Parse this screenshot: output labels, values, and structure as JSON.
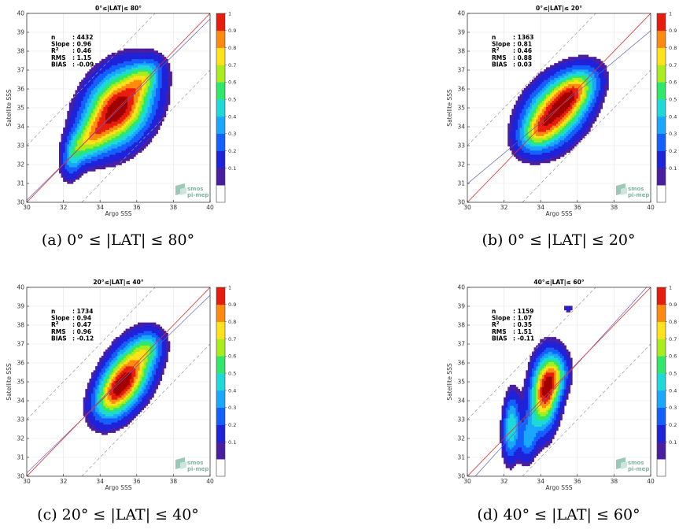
{
  "chart_data": [
    {
      "type": "heatmap",
      "title": "0°≤|LAT|≤ 80°",
      "caption": "(a) 0° ≤ |LAT| ≤ 80°",
      "xlabel": "Argo SSS",
      "ylabel": "Satellite SSS",
      "xlim": [
        30,
        40
      ],
      "ylim": [
        30,
        40
      ],
      "xticks": [
        30,
        32,
        34,
        36,
        38,
        40
      ],
      "yticks": [
        30,
        31,
        32,
        33,
        34,
        35,
        36,
        37,
        38,
        39,
        40
      ],
      "stats": [
        {
          "label": "n",
          "value": ": 4432"
        },
        {
          "label": "Slope",
          "value": ": 0.96"
        },
        {
          "label": "R2",
          "value": ": 0.46"
        },
        {
          "label": "RMS",
          "value": ": 1.15"
        },
        {
          "label": "BIAS",
          "value": ": -0.09"
        }
      ],
      "slope": 0.96,
      "bias": -0.09,
      "density_blobs": [
        {
          "cx": 35.0,
          "cy": 35.0,
          "sx": 1.05,
          "sy": 1.45,
          "rot": 55,
          "w": 1.0
        },
        {
          "cx": 33.4,
          "cy": 33.3,
          "sx": 0.55,
          "sy": 0.9,
          "rot": 50,
          "w": 0.45
        },
        {
          "cx": 32.5,
          "cy": 32.4,
          "sx": 0.35,
          "sy": 0.8,
          "rot": 80,
          "w": 0.25
        },
        {
          "cx": 36.4,
          "cy": 36.6,
          "sx": 0.5,
          "sy": 0.7,
          "rot": 45,
          "w": 0.35
        }
      ],
      "grid": true,
      "colorbar": {
        "ticks": [
          0.1,
          0.2,
          0.3,
          0.4,
          0.5,
          0.6,
          0.7,
          0.8,
          0.9,
          1
        ],
        "range": [
          0,
          1
        ]
      },
      "logo": [
        "smos",
        "pi-mep"
      ]
    },
    {
      "type": "heatmap",
      "title": "0°≤|LAT|≤ 20°",
      "caption": "(b) 0° ≤ |LAT| ≤ 20°",
      "xlabel": "Argo SSS",
      "ylabel": "Satellite SSS",
      "xlim": [
        30,
        40
      ],
      "ylim": [
        30,
        40
      ],
      "xticks": [
        30,
        32,
        34,
        36,
        38,
        40
      ],
      "yticks": [
        30,
        31,
        32,
        33,
        34,
        35,
        36,
        37,
        38,
        39,
        40
      ],
      "stats": [
        {
          "label": "n",
          "value": ": 1363"
        },
        {
          "label": "Slope",
          "value": ": 0.81"
        },
        {
          "label": "R2",
          "value": ": 0.46"
        },
        {
          "label": "RMS",
          "value": ": 0.88"
        },
        {
          "label": "BIAS",
          "value": ": 0.03"
        }
      ],
      "slope": 0.81,
      "bias": 0.03,
      "density_blobs": [
        {
          "cx": 34.8,
          "cy": 34.8,
          "sx": 0.9,
          "sy": 1.35,
          "rot": 50,
          "w": 1.0
        },
        {
          "cx": 36.0,
          "cy": 36.0,
          "sx": 0.6,
          "sy": 0.9,
          "rot": 45,
          "w": 0.5
        },
        {
          "cx": 33.8,
          "cy": 33.7,
          "sx": 0.5,
          "sy": 0.7,
          "rot": 45,
          "w": 0.35
        }
      ],
      "grid": true,
      "colorbar": {
        "ticks": [
          0.1,
          0.2,
          0.3,
          0.4,
          0.5,
          0.6,
          0.7,
          0.8,
          0.9,
          1
        ],
        "range": [
          0,
          1
        ]
      },
      "logo": [
        "smos",
        "pi-mep"
      ]
    },
    {
      "type": "heatmap",
      "title": "20°≤|LAT|≤ 40°",
      "caption": "(c) 20° ≤ |LAT| ≤ 40°",
      "xlabel": "Argo SSS",
      "ylabel": "Satellite SSS",
      "xlim": [
        30,
        40
      ],
      "ylim": [
        30,
        40
      ],
      "xticks": [
        30,
        32,
        34,
        36,
        38,
        40
      ],
      "yticks": [
        30,
        31,
        32,
        33,
        34,
        35,
        36,
        37,
        38,
        39,
        40
      ],
      "stats": [
        {
          "label": "n",
          "value": ": 1734"
        },
        {
          "label": "Slope",
          "value": ": 0.94"
        },
        {
          "label": "R2",
          "value": ": 0.47"
        },
        {
          "label": "RMS",
          "value": ": 0.96"
        },
        {
          "label": "BIAS",
          "value": ": -0.12"
        }
      ],
      "slope": 0.94,
      "bias": -0.12,
      "density_blobs": [
        {
          "cx": 35.5,
          "cy": 35.3,
          "sx": 0.75,
          "sy": 1.35,
          "rot": 60,
          "w": 1.0
        },
        {
          "cx": 34.6,
          "cy": 34.2,
          "sx": 0.6,
          "sy": 0.9,
          "rot": 60,
          "w": 0.4
        },
        {
          "cx": 36.6,
          "cy": 36.8,
          "sx": 0.45,
          "sy": 0.55,
          "rot": 45,
          "w": 0.3
        }
      ],
      "grid": true,
      "colorbar": {
        "ticks": [
          0.1,
          0.2,
          0.3,
          0.4,
          0.5,
          0.6,
          0.7,
          0.8,
          0.9,
          1
        ],
        "range": [
          0,
          1
        ]
      },
      "logo": [
        "smos",
        "pi-mep"
      ]
    },
    {
      "type": "heatmap",
      "title": "40°≤|LAT|≤ 60°",
      "caption": "(d) 40° ≤ |LAT| ≤ 60°",
      "xlabel": "Argo SSS",
      "ylabel": "Satellite SSS",
      "xlim": [
        30,
        40
      ],
      "ylim": [
        30,
        40
      ],
      "xticks": [
        30,
        32,
        34,
        36,
        38,
        40
      ],
      "yticks": [
        30,
        31,
        32,
        33,
        34,
        35,
        36,
        37,
        38,
        39,
        40
      ],
      "stats": [
        {
          "label": "n",
          "value": ": 1159"
        },
        {
          "label": "Slope",
          "value": ": 1.07"
        },
        {
          "label": "R2",
          "value": ": 0.35"
        },
        {
          "label": "RMS",
          "value": ": 1.51"
        },
        {
          "label": "BIAS",
          "value": ": -0.11"
        }
      ],
      "slope": 1.07,
      "bias": -0.11,
      "density_blobs": [
        {
          "cx": 34.2,
          "cy": 34.4,
          "sx": 0.5,
          "sy": 1.3,
          "rot": 85,
          "w": 1.0
        },
        {
          "cx": 34.8,
          "cy": 35.3,
          "sx": 0.45,
          "sy": 0.8,
          "rot": 80,
          "w": 0.5
        },
        {
          "cx": 32.4,
          "cy": 32.6,
          "sx": 0.3,
          "sy": 1.1,
          "rot": 88,
          "w": 0.55
        },
        {
          "cx": 33.3,
          "cy": 32.0,
          "sx": 0.3,
          "sy": 0.8,
          "rot": 85,
          "w": 0.35
        },
        {
          "cx": 35.5,
          "cy": 38.9,
          "sx": 0.15,
          "sy": 0.15,
          "rot": 0,
          "w": 0.15
        }
      ],
      "grid": true,
      "colorbar": {
        "ticks": [
          0.1,
          0.2,
          0.3,
          0.4,
          0.5,
          0.6,
          0.7,
          0.8,
          0.9,
          1
        ],
        "range": [
          0,
          1
        ]
      },
      "logo": [
        "smos",
        "pi-mep"
      ]
    }
  ],
  "colors": {
    "identity_line": "#e03030",
    "fit_line": "#6060c0",
    "dashed": "#999999",
    "palette": [
      "#ffffff",
      "#4b1ea0",
      "#1f22d8",
      "#1460ff",
      "#19a7ff",
      "#1fd8d8",
      "#2fe86a",
      "#a8ec1c",
      "#ffe21a",
      "#ff8a10",
      "#e81c0c",
      "#a00000"
    ]
  }
}
